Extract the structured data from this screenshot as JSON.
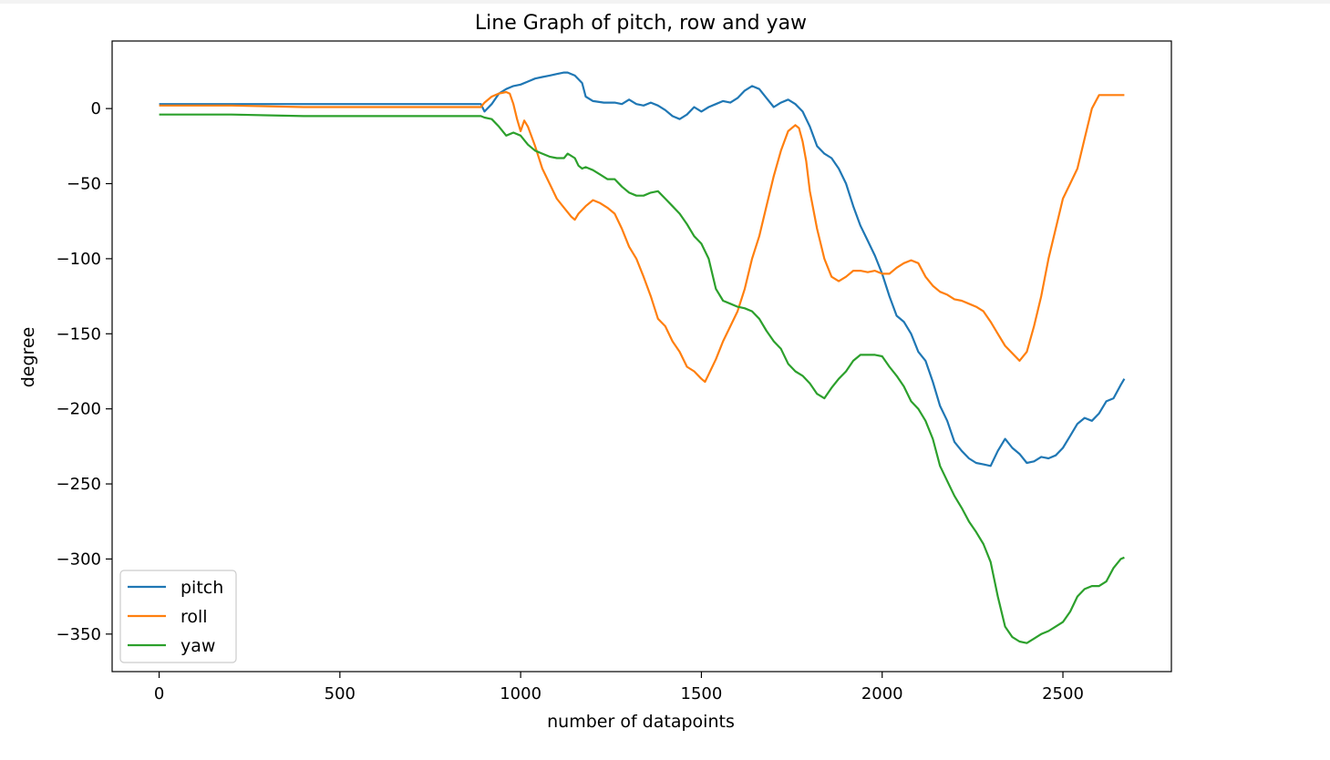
{
  "chart_data": {
    "type": "line",
    "title": "Line Graph of pitch, row and yaw",
    "xlabel": "number of datapoints",
    "ylabel": "degree",
    "xlim": [
      -130,
      2800
    ],
    "ylim": [
      -375,
      45
    ],
    "xticks": [
      0,
      500,
      1000,
      1500,
      2000,
      2500
    ],
    "yticks": [
      0,
      -50,
      -100,
      -150,
      -200,
      -250,
      -300,
      -350
    ],
    "legend_position": "bottom-left",
    "grid": false,
    "series": [
      {
        "name": "pitch",
        "color": "#1f77b4",
        "x": [
          0,
          200,
          400,
          600,
          890,
          900,
          920,
          940,
          960,
          980,
          1000,
          1020,
          1040,
          1060,
          1080,
          1100,
          1120,
          1130,
          1150,
          1170,
          1180,
          1200,
          1230,
          1260,
          1280,
          1300,
          1320,
          1340,
          1360,
          1380,
          1400,
          1420,
          1440,
          1460,
          1480,
          1500,
          1520,
          1540,
          1560,
          1580,
          1600,
          1620,
          1640,
          1660,
          1680,
          1700,
          1720,
          1740,
          1760,
          1780,
          1800,
          1820,
          1840,
          1860,
          1880,
          1900,
          1920,
          1940,
          1960,
          1980,
          2000,
          2020,
          2040,
          2060,
          2080,
          2100,
          2120,
          2140,
          2160,
          2180,
          2200,
          2220,
          2240,
          2260,
          2280,
          2300,
          2320,
          2340,
          2360,
          2380,
          2400,
          2420,
          2440,
          2460,
          2480,
          2500,
          2520,
          2540,
          2560,
          2580,
          2600,
          2620,
          2640,
          2660,
          2670
        ],
        "y": [
          3,
          3,
          3,
          3,
          3,
          -2,
          3,
          10,
          13,
          15,
          16,
          18,
          20,
          21,
          22,
          23,
          24,
          24,
          22,
          17,
          8,
          5,
          4,
          4,
          3,
          6,
          3,
          2,
          4,
          2,
          -1,
          -5,
          -7,
          -4,
          1,
          -2,
          1,
          3,
          5,
          4,
          7,
          12,
          15,
          13,
          7,
          1,
          4,
          6,
          3,
          -2,
          -12,
          -25,
          -30,
          -33,
          -40,
          -50,
          -65,
          -78,
          -88,
          -98,
          -110,
          -125,
          -138,
          -142,
          -150,
          -162,
          -168,
          -182,
          -198,
          -208,
          -222,
          -228,
          -233,
          -236,
          -237,
          -238,
          -228,
          -220,
          -226,
          -230,
          -236,
          -235,
          -232,
          -233,
          -231,
          -226,
          -218,
          -210,
          -206,
          -208,
          -203,
          -195,
          -193,
          -184,
          -180
        ]
      },
      {
        "name": "roll",
        "color": "#ff7f0e",
        "x": [
          0,
          200,
          400,
          600,
          890,
          900,
          920,
          940,
          960,
          970,
          980,
          990,
          1000,
          1010,
          1020,
          1040,
          1060,
          1080,
          1100,
          1120,
          1140,
          1150,
          1160,
          1180,
          1200,
          1220,
          1240,
          1260,
          1280,
          1300,
          1320,
          1340,
          1360,
          1380,
          1400,
          1420,
          1440,
          1460,
          1480,
          1500,
          1510,
          1520,
          1540,
          1560,
          1580,
          1600,
          1620,
          1640,
          1660,
          1680,
          1700,
          1720,
          1740,
          1760,
          1770,
          1780,
          1790,
          1800,
          1820,
          1840,
          1860,
          1880,
          1900,
          1920,
          1940,
          1960,
          1980,
          2000,
          2020,
          2040,
          2060,
          2080,
          2100,
          2120,
          2140,
          2160,
          2180,
          2200,
          2220,
          2240,
          2260,
          2280,
          2300,
          2320,
          2340,
          2360,
          2380,
          2400,
          2420,
          2440,
          2460,
          2480,
          2500,
          2520,
          2540,
          2560,
          2580,
          2600,
          2620,
          2640,
          2660,
          2670
        ],
        "y": [
          2,
          2,
          1,
          1,
          1,
          4,
          8,
          10,
          11,
          10,
          3,
          -7,
          -15,
          -8,
          -12,
          -25,
          -40,
          -50,
          -60,
          -66,
          -72,
          -74,
          -70,
          -65,
          -61,
          -63,
          -66,
          -70,
          -80,
          -92,
          -100,
          -112,
          -125,
          -140,
          -145,
          -155,
          -162,
          -172,
          -175,
          -180,
          -182,
          -177,
          -167,
          -155,
          -145,
          -135,
          -120,
          -100,
          -85,
          -65,
          -45,
          -28,
          -15,
          -11,
          -13,
          -22,
          -35,
          -55,
          -80,
          -100,
          -112,
          -115,
          -112,
          -108,
          -108,
          -109,
          -108,
          -110,
          -110,
          -106,
          -103,
          -101,
          -103,
          -112,
          -118,
          -122,
          -124,
          -127,
          -128,
          -130,
          -132,
          -135,
          -142,
          -150,
          -158,
          -163,
          -168,
          -162,
          -145,
          -125,
          -100,
          -80,
          -60,
          -50,
          -40,
          -20,
          0,
          9,
          9,
          9,
          9,
          9
        ],
        "note_unused": null
      },
      {
        "name": "yaw",
        "color": "#2ca02c",
        "x": [
          0,
          200,
          400,
          600,
          890,
          900,
          920,
          940,
          960,
          980,
          1000,
          1020,
          1040,
          1060,
          1080,
          1100,
          1120,
          1130,
          1150,
          1160,
          1170,
          1180,
          1200,
          1220,
          1240,
          1260,
          1280,
          1300,
          1320,
          1340,
          1360,
          1380,
          1400,
          1420,
          1440,
          1460,
          1480,
          1500,
          1520,
          1540,
          1560,
          1580,
          1600,
          1620,
          1640,
          1660,
          1680,
          1700,
          1720,
          1740,
          1760,
          1780,
          1800,
          1820,
          1840,
          1860,
          1880,
          1900,
          1920,
          1940,
          1960,
          1980,
          2000,
          2020,
          2040,
          2060,
          2080,
          2100,
          2120,
          2140,
          2160,
          2180,
          2200,
          2220,
          2240,
          2260,
          2280,
          2300,
          2320,
          2340,
          2360,
          2380,
          2400,
          2420,
          2440,
          2460,
          2480,
          2500,
          2520,
          2540,
          2560,
          2580,
          2600,
          2620,
          2640,
          2660,
          2670
        ],
        "y": [
          -4,
          -4,
          -5,
          -5,
          -5,
          -6,
          -7,
          -12,
          -18,
          -16,
          -18,
          -24,
          -28,
          -30,
          -32,
          -33,
          -33,
          -30,
          -33,
          -38,
          -40,
          -39,
          -41,
          -44,
          -47,
          -47,
          -52,
          -56,
          -58,
          -58,
          -56,
          -55,
          -60,
          -65,
          -70,
          -77,
          -85,
          -90,
          -100,
          -120,
          -128,
          -130,
          -132,
          -133,
          -135,
          -140,
          -148,
          -155,
          -160,
          -170,
          -175,
          -178,
          -183,
          -190,
          -193,
          -186,
          -180,
          -175,
          -168,
          -164,
          -164,
          -164,
          -165,
          -172,
          -178,
          -185,
          -195,
          -200,
          -208,
          -220,
          -238,
          -248,
          -258,
          -266,
          -275,
          -282,
          -290,
          -302,
          -325,
          -345,
          -352,
          -355,
          -356,
          -353,
          -350,
          -348,
          -345,
          -342,
          -335,
          -325,
          -320,
          -318,
          -318,
          -315,
          -306,
          -300,
          -299
        ],
        "note_unused": null
      }
    ]
  }
}
